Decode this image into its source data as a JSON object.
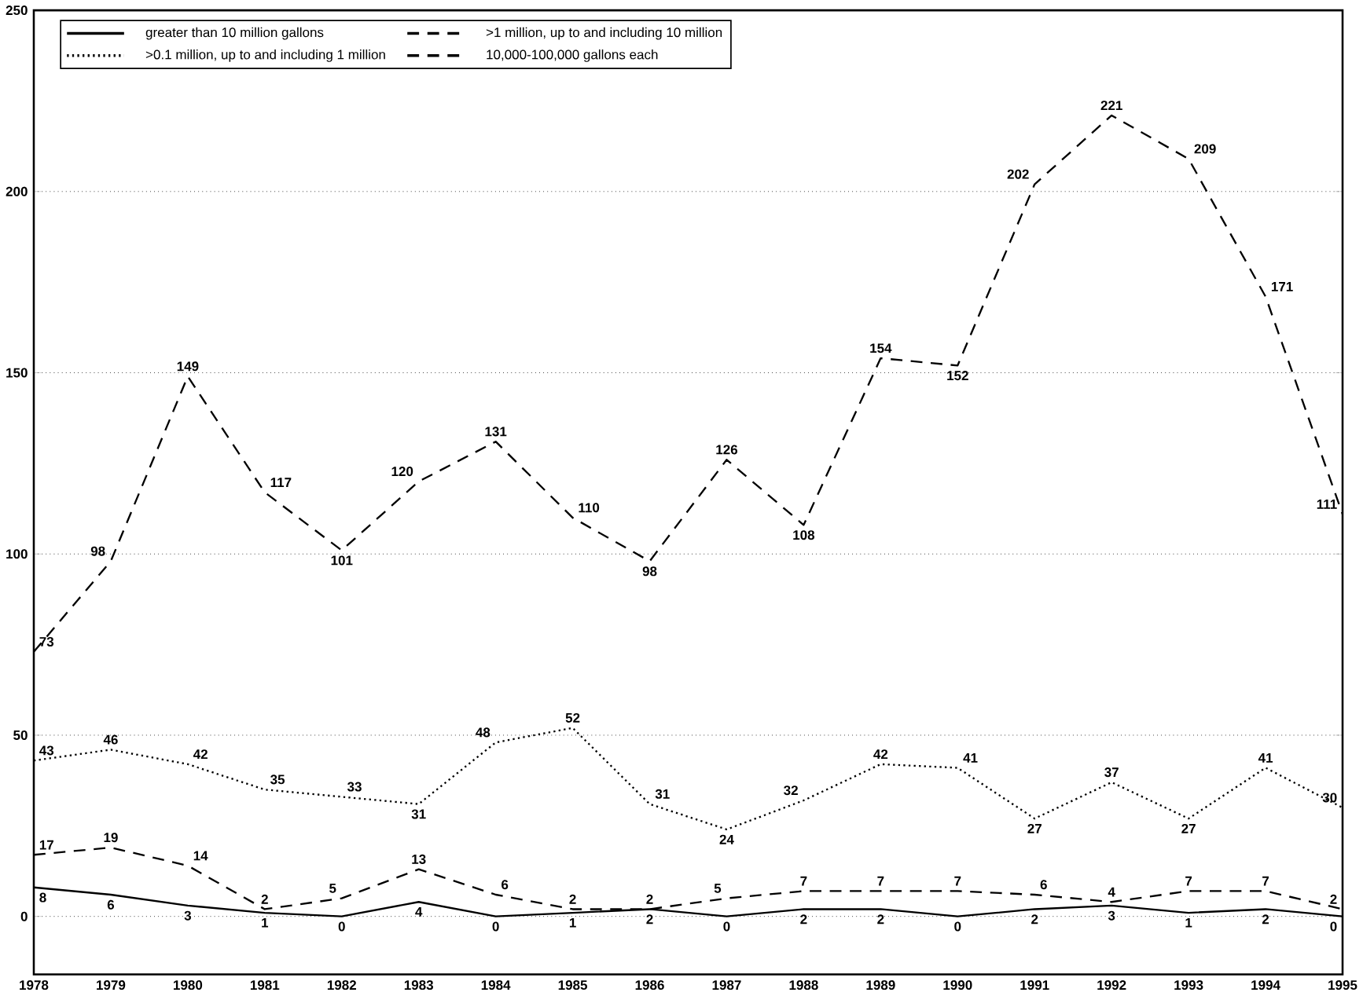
{
  "chart_data": {
    "type": "line",
    "categories": [
      "1978",
      "1979",
      "1980",
      "1981",
      "1982",
      "1983",
      "1984",
      "1985",
      "1986",
      "1987",
      "1988",
      "1989",
      "1990",
      "1991",
      "1992",
      "1993",
      "1994",
      "1995"
    ],
    "series": [
      {
        "name": "greater than 10 million gallons",
        "color": "#000000",
        "line_style": "solid",
        "values": [
          8,
          6,
          3,
          1,
          0,
          4,
          0,
          1,
          2,
          0,
          2,
          2,
          0,
          2,
          3,
          1,
          2,
          0
        ]
      },
      {
        "name": ">1 million, up to and including 10 million",
        "color": "#000000",
        "line_style": "dashed",
        "values": [
          17,
          19,
          14,
          2,
          5,
          13,
          6,
          2,
          2,
          5,
          7,
          7,
          7,
          6,
          4,
          7,
          7,
          2
        ]
      },
      {
        "name": ">0.1 million, up to and including 1 million",
        "color": "#000000",
        "line_style": "dotted",
        "values": [
          43,
          46,
          42,
          35,
          33,
          31,
          48,
          52,
          31,
          24,
          32,
          42,
          41,
          27,
          37,
          27,
          41,
          30
        ]
      },
      {
        "name": "10,000-100,000 gallons each",
        "color": "#000000",
        "line_style": "dashed",
        "values": [
          73,
          98,
          149,
          117,
          101,
          120,
          131,
          110,
          98,
          126,
          108,
          154,
          152,
          202,
          221,
          209,
          171,
          111
        ]
      }
    ],
    "ylim": [
      -16,
      250
    ],
    "yticks": [
      0,
      50,
      100,
      150,
      200,
      250
    ],
    "grid": "y",
    "legend": "top left",
    "data_labels": true,
    "marker": "none"
  }
}
